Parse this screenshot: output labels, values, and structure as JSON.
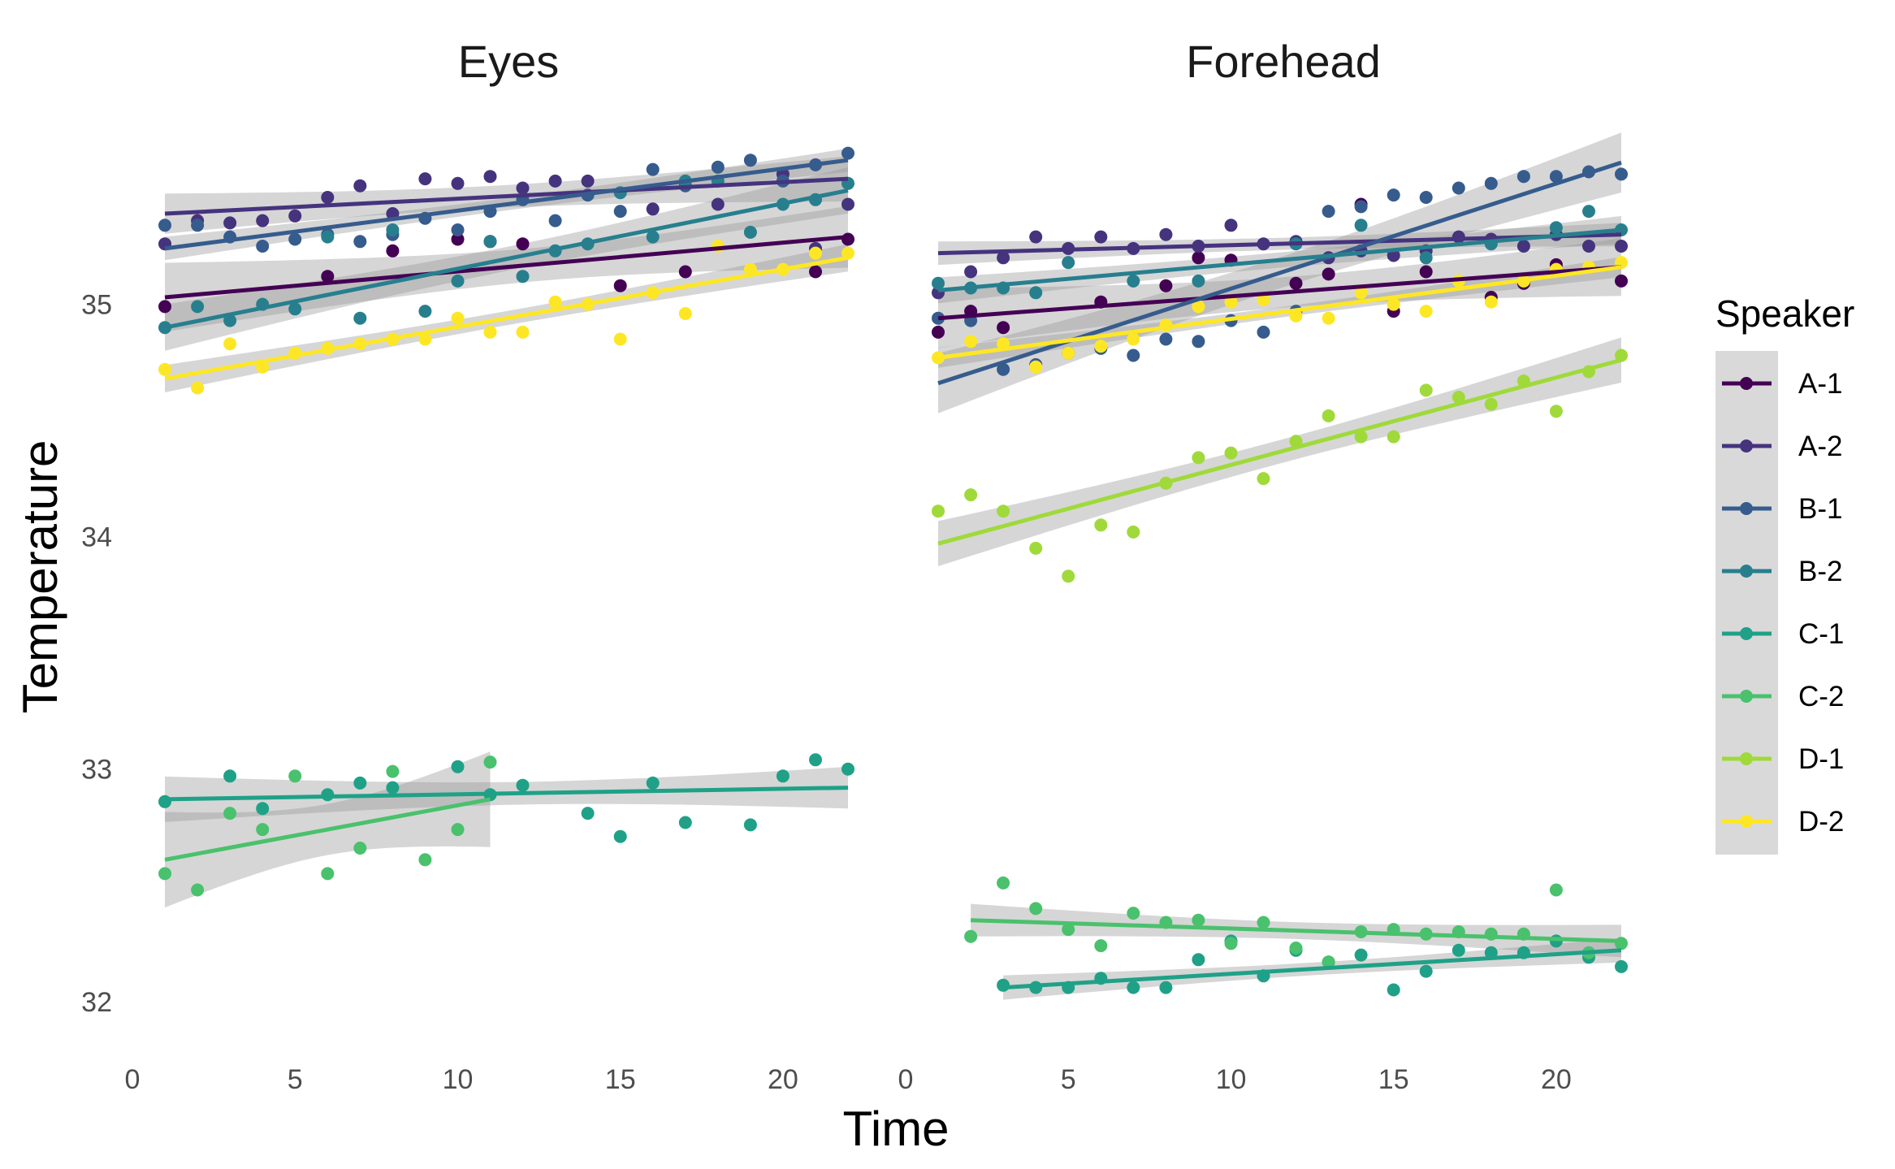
{
  "chart_data": {
    "type": "scatter",
    "title": "",
    "xlabel": "Time",
    "ylabel": "Temperature",
    "xlim": [
      0,
      22
    ],
    "ylim": [
      31.8,
      35.75
    ],
    "x_ticks": [
      0,
      5,
      10,
      15,
      20
    ],
    "y_ticks": [
      32,
      33,
      34,
      35
    ],
    "grid": false,
    "smoothing": "linear fit with grey confidence band",
    "legend": {
      "title": "Speaker",
      "position": "right",
      "entries": [
        "A-1",
        "A-2",
        "B-1",
        "B-2",
        "C-1",
        "C-2",
        "D-1",
        "D-2"
      ]
    },
    "colors": {
      "A-1": "#440154",
      "A-2": "#46337E",
      "B-1": "#365C8D",
      "B-2": "#277F8E",
      "C-1": "#1FA187",
      "C-2": "#4AC16D",
      "D-1": "#9FDA3A",
      "D-2": "#FDE725"
    },
    "panels": [
      {
        "name": "Eyes",
        "series": [
          {
            "speaker": "A-1",
            "x": [
              1,
              6,
              8,
              10,
              11,
              12,
              15,
              17,
              21,
              22
            ],
            "y": [
              34.99,
              35.12,
              35.23,
              35.28,
              35.27,
              35.26,
              35.08,
              35.14,
              35.14,
              35.28
            ],
            "fit": [
              [
                1,
                35.03
              ],
              [
                22,
                35.29
              ]
            ]
          },
          {
            "speaker": "A-2",
            "x": [
              1,
              2,
              3,
              4,
              5,
              6,
              7,
              8,
              9,
              10,
              11,
              12,
              13,
              14,
              16,
              18,
              20,
              21,
              22
            ],
            "y": [
              35.26,
              35.36,
              35.35,
              35.36,
              35.38,
              35.46,
              35.51,
              35.39,
              35.54,
              35.52,
              35.55,
              35.5,
              35.53,
              35.53,
              35.41,
              35.43,
              35.56,
              35.24,
              35.43
            ],
            "fit": [
              [
                1,
                35.39
              ],
              [
                22,
                35.54
              ]
            ]
          },
          {
            "speaker": "B-1",
            "x": [
              1,
              2,
              3,
              4,
              5,
              6,
              7,
              8,
              9,
              10,
              11,
              12,
              13,
              14,
              15,
              16,
              17,
              18,
              19,
              20,
              21,
              22
            ],
            "y": [
              35.34,
              35.34,
              35.29,
              35.25,
              35.28,
              35.3,
              35.27,
              35.3,
              35.37,
              35.32,
              35.4,
              35.45,
              35.36,
              35.47,
              35.4,
              35.58,
              35.51,
              35.59,
              35.62,
              35.53,
              35.6,
              35.65
            ],
            "fit": [
              [
                1,
                35.24
              ],
              [
                22,
                35.62
              ]
            ]
          },
          {
            "speaker": "B-2",
            "x": [
              1,
              2,
              3,
              4,
              5,
              6,
              7,
              8,
              9,
              10,
              11,
              12,
              13,
              14,
              15,
              16,
              17,
              18,
              19,
              20,
              21,
              22
            ],
            "y": [
              34.9,
              34.99,
              34.93,
              35.0,
              34.98,
              35.29,
              34.94,
              35.32,
              34.97,
              35.1,
              35.27,
              35.12,
              35.23,
              35.26,
              35.48,
              35.29,
              35.53,
              35.53,
              35.31,
              35.43,
              35.45,
              35.52
            ],
            "fit": [
              [
                1,
                34.9
              ],
              [
                22,
                35.49
              ]
            ]
          },
          {
            "speaker": "C-1",
            "x": [
              1,
              3,
              4,
              6,
              7,
              8,
              10,
              11,
              12,
              14,
              15,
              16,
              17,
              19,
              20,
              21,
              22
            ],
            "y": [
              32.86,
              32.97,
              32.83,
              32.89,
              32.94,
              32.92,
              33.01,
              32.89,
              32.93,
              32.81,
              32.71,
              32.94,
              32.77,
              32.76,
              32.97,
              33.04,
              33.0
            ],
            "fit": [
              [
                1,
                32.87
              ],
              [
                22,
                32.92
              ]
            ]
          },
          {
            "speaker": "C-2",
            "x": [
              1,
              2,
              3,
              4,
              5,
              6,
              7,
              8,
              9,
              10,
              11
            ],
            "y": [
              32.55,
              32.48,
              32.81,
              32.74,
              32.97,
              32.55,
              32.66,
              32.99,
              32.61,
              32.74,
              33.03
            ],
            "fit": [
              [
                1,
                32.61
              ],
              [
                11,
                32.87
              ]
            ]
          },
          {
            "speaker": "D-2",
            "x": [
              1,
              2,
              3,
              4,
              5,
              6,
              7,
              8,
              9,
              10,
              11,
              12,
              13,
              14,
              15,
              16,
              17,
              18,
              19,
              20,
              21,
              22
            ],
            "y": [
              34.72,
              34.64,
              34.83,
              34.73,
              34.79,
              34.81,
              34.83,
              34.85,
              34.85,
              34.94,
              34.88,
              34.88,
              35.01,
              35.0,
              34.85,
              35.05,
              34.96,
              35.25,
              35.15,
              35.15,
              35.22,
              35.22
            ],
            "fit": [
              [
                1,
                34.68
              ],
              [
                22,
                35.2
              ]
            ]
          }
        ]
      },
      {
        "name": "Forehead",
        "series": [
          {
            "speaker": "A-1",
            "x": [
              1,
              2,
              3,
              6,
              8,
              9,
              10,
              12,
              13,
              14,
              15,
              16,
              18,
              19,
              20,
              22
            ],
            "y": [
              34.88,
              34.97,
              34.9,
              35.01,
              35.08,
              35.2,
              35.19,
              35.09,
              35.13,
              35.43,
              34.97,
              35.14,
              35.03,
              35.09,
              35.17,
              35.1
            ],
            "fit": [
              [
                1,
                34.94
              ],
              [
                22,
                35.16
              ]
            ]
          },
          {
            "speaker": "A-2",
            "x": [
              1,
              2,
              3,
              4,
              5,
              6,
              7,
              8,
              9,
              10,
              11,
              12,
              13,
              14,
              15,
              16,
              17,
              18,
              19,
              20,
              21,
              22
            ],
            "y": [
              35.05,
              35.14,
              35.2,
              35.29,
              35.24,
              35.29,
              35.24,
              35.3,
              35.25,
              35.34,
              35.26,
              35.27,
              35.2,
              35.23,
              35.21,
              35.23,
              35.29,
              35.28,
              35.25,
              35.3,
              35.25,
              35.25
            ],
            "fit": [
              [
                1,
                35.22
              ],
              [
                22,
                35.3
              ]
            ]
          },
          {
            "speaker": "B-1",
            "x": [
              1,
              2,
              3,
              4,
              5,
              6,
              7,
              8,
              9,
              10,
              11,
              12,
              13,
              14,
              15,
              16,
              17,
              18,
              19,
              20,
              21,
              22
            ],
            "y": [
              34.94,
              34.93,
              34.72,
              34.74,
              34.79,
              34.81,
              34.78,
              34.85,
              34.84,
              34.93,
              34.88,
              34.97,
              35.4,
              35.42,
              35.47,
              35.46,
              35.5,
              35.52,
              35.55,
              35.55,
              35.57,
              35.56
            ],
            "fit": [
              [
                1,
                34.66
              ],
              [
                22,
                35.61
              ]
            ]
          },
          {
            "speaker": "B-2",
            "x": [
              1,
              2,
              3,
              4,
              5,
              7,
              9,
              12,
              14,
              16,
              18,
              20,
              21,
              22
            ],
            "y": [
              35.09,
              35.07,
              35.07,
              35.05,
              35.18,
              35.1,
              35.1,
              35.26,
              35.34,
              35.2,
              35.26,
              35.33,
              35.4,
              35.32
            ],
            "fit": [
              [
                1,
                35.06
              ],
              [
                22,
                35.32
              ]
            ]
          },
          {
            "speaker": "C-1",
            "x": [
              3,
              4,
              5,
              6,
              7,
              8,
              9,
              10,
              11,
              12,
              13,
              14,
              15,
              16,
              17,
              18,
              19,
              20,
              21,
              22
            ],
            "y": [
              32.07,
              32.06,
              32.06,
              32.1,
              32.06,
              32.06,
              32.18,
              32.26,
              32.11,
              32.22,
              32.17,
              32.2,
              32.05,
              32.13,
              32.22,
              32.21,
              32.21,
              32.26,
              32.19,
              32.15
            ],
            "fit": [
              [
                3,
                32.06
              ],
              [
                22,
                32.22
              ]
            ]
          },
          {
            "speaker": "C-2",
            "x": [
              2,
              3,
              4,
              5,
              6,
              7,
              8,
              9,
              10,
              11,
              12,
              13,
              14,
              15,
              16,
              17,
              18,
              19,
              20,
              21,
              22
            ],
            "y": [
              32.28,
              32.51,
              32.4,
              32.31,
              32.24,
              32.38,
              32.34,
              32.35,
              32.25,
              32.34,
              32.23,
              32.17,
              32.3,
              32.31,
              32.29,
              32.3,
              32.29,
              32.29,
              32.48,
              32.21,
              32.25
            ],
            "fit": [
              [
                2,
                32.35
              ],
              [
                22,
                32.26
              ]
            ]
          },
          {
            "speaker": "D-1",
            "x": [
              1,
              2,
              3,
              4,
              5,
              6,
              7,
              8,
              9,
              10,
              11,
              12,
              13,
              14,
              15,
              16,
              17,
              18,
              19,
              20,
              21,
              22
            ],
            "y": [
              34.11,
              34.18,
              34.11,
              33.95,
              33.83,
              34.05,
              34.02,
              34.23,
              34.34,
              34.36,
              34.25,
              34.41,
              34.52,
              34.43,
              34.43,
              34.63,
              34.6,
              34.57,
              34.67,
              34.54,
              34.71,
              34.78
            ],
            "fit": [
              [
                1,
                33.97
              ],
              [
                22,
                34.76
              ]
            ]
          },
          {
            "speaker": "D-2",
            "x": [
              1,
              2,
              3,
              4,
              5,
              6,
              7,
              8,
              9,
              10,
              11,
              12,
              13,
              14,
              15,
              16,
              17,
              18,
              19,
              20,
              21,
              22
            ],
            "y": [
              34.77,
              34.84,
              34.83,
              34.73,
              34.79,
              34.82,
              34.85,
              34.91,
              34.99,
              35.01,
              35.02,
              34.95,
              34.94,
              35.05,
              35.0,
              34.97,
              35.1,
              35.01,
              35.1,
              35.15,
              35.16,
              35.18
            ],
            "fit": [
              [
                1,
                34.77
              ],
              [
                22,
                35.16
              ]
            ]
          }
        ]
      }
    ]
  }
}
